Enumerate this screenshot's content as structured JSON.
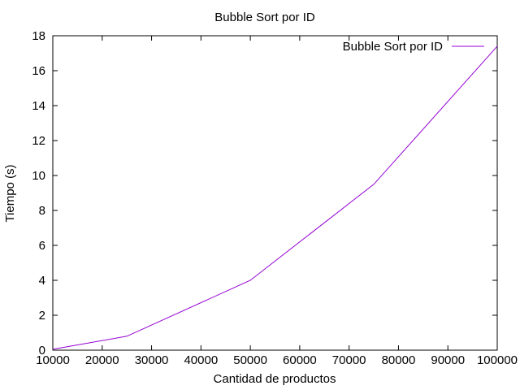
{
  "chart_data": {
    "type": "line",
    "title": "Bubble Sort por ID",
    "xlabel": "Cantidad de productos",
    "ylabel": "Tiempo (s)",
    "xlim": [
      10000,
      100000
    ],
    "ylim": [
      0,
      18
    ],
    "xticks": [
      10000,
      20000,
      30000,
      40000,
      50000,
      60000,
      70000,
      80000,
      90000,
      100000
    ],
    "yticks": [
      0,
      2,
      4,
      6,
      8,
      10,
      12,
      14,
      16,
      18
    ],
    "grid": false,
    "legend_position": "top-right",
    "series": [
      {
        "name": "Bubble Sort por ID",
        "color": "#9400d3",
        "x": [
          10000,
          25000,
          50000,
          75000,
          100000
        ],
        "y": [
          0.05,
          0.8,
          4.0,
          9.5,
          17.4
        ]
      }
    ]
  }
}
